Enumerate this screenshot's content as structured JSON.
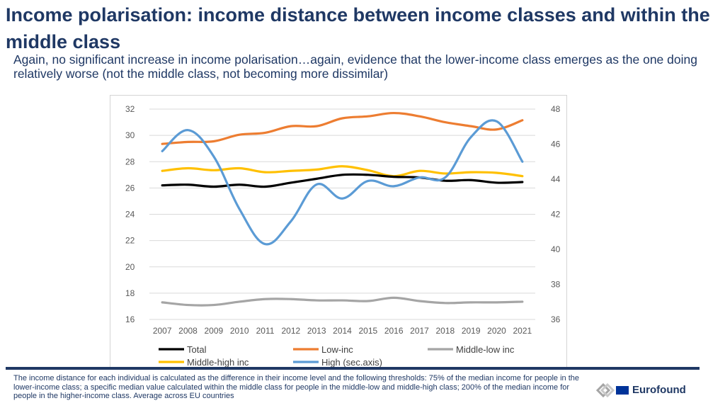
{
  "header": {
    "title": "Income polarisation: income distance between income classes and within the middle class",
    "subtitle": "Again, no significant increase in income polarisation…again, evidence that the lower-income class emerges as the one doing relatively worse (not the middle class, not becoming more dissimilar)"
  },
  "chart_data": {
    "type": "line",
    "title": "",
    "xlabel": "",
    "ylabel": "",
    "categories": [
      "2007",
      "2008",
      "2009",
      "2010",
      "2011",
      "2012",
      "2013",
      "2014",
      "2015",
      "2016",
      "2017",
      "2018",
      "2019",
      "2020",
      "2021"
    ],
    "ylim": [
      16,
      32
    ],
    "yticks": [
      "16",
      "18",
      "20",
      "22",
      "24",
      "26",
      "28",
      "30",
      "32"
    ],
    "y2lim": [
      36,
      48
    ],
    "y2ticks": [
      "36",
      "38",
      "40",
      "42",
      "44",
      "46",
      "48"
    ],
    "grid": true,
    "legend_position": "bottom",
    "series": [
      {
        "name": "Total",
        "axis": "left",
        "color": "#000000",
        "values": [
          26.2,
          26.25,
          26.1,
          26.25,
          26.1,
          26.4,
          26.7,
          27.0,
          27.0,
          26.85,
          26.8,
          26.55,
          26.6,
          26.4,
          26.45
        ]
      },
      {
        "name": "Low-inc",
        "axis": "left",
        "color": "#ed7d31",
        "values": [
          29.35,
          29.5,
          29.55,
          30.05,
          30.2,
          30.7,
          30.7,
          31.3,
          31.45,
          31.7,
          31.45,
          31.0,
          30.7,
          30.45,
          31.15
        ]
      },
      {
        "name": "Middle-low inc",
        "axis": "left",
        "color": "#a5a5a5",
        "values": [
          17.3,
          17.1,
          17.1,
          17.35,
          17.55,
          17.55,
          17.45,
          17.45,
          17.4,
          17.65,
          17.4,
          17.25,
          17.3,
          17.3,
          17.35
        ]
      },
      {
        "name": "Middle-high inc",
        "axis": "left",
        "color": "#ffc000",
        "values": [
          27.3,
          27.5,
          27.35,
          27.5,
          27.2,
          27.3,
          27.4,
          27.65,
          27.35,
          26.9,
          27.3,
          27.1,
          27.2,
          27.15,
          26.9
        ]
      },
      {
        "name": "High (sec.axis)",
        "axis": "right",
        "color": "#5b9bd5",
        "values": [
          45.6,
          46.8,
          45.3,
          42.3,
          40.3,
          41.6,
          43.7,
          42.9,
          43.9,
          43.6,
          44.1,
          44.1,
          46.4,
          47.3,
          45.0
        ]
      }
    ]
  },
  "footnote": "The income distance for each individual is calculated as the difference in their income level and the following thresholds: 75% of the median income for people in the lower-income class; a specific median value calculated within the middle class for people in the middle-low and middle-high class; 200% of the median income for people in the higher-income class. Average across EU countries",
  "logo": {
    "text": "Eurofound"
  }
}
